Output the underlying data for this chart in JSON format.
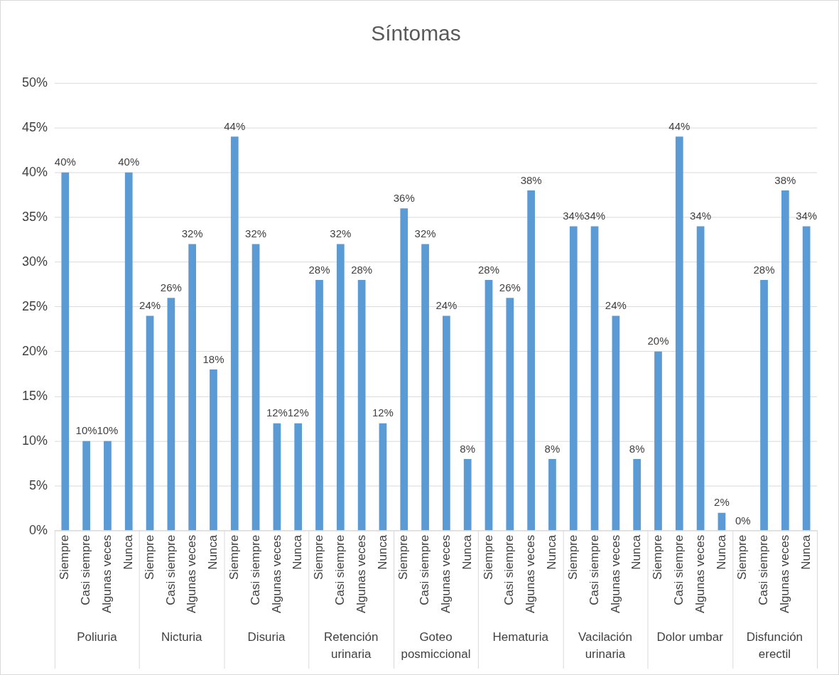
{
  "chart_data": {
    "type": "bar",
    "title": "Síntomas",
    "categories": [
      "Siempre",
      "Casi siempre",
      "Algunas veces",
      "Nunca",
      "Siempre",
      "Casi siempre",
      "Algunas veces",
      "Nunca",
      "Siempre",
      "Casi siempre",
      "Algunas veces",
      "Nunca",
      "Siempre",
      "Casi siempre",
      "Algunas veces",
      "Nunca",
      "Siempre",
      "Casi siempre",
      "Algunas veces",
      "Nunca",
      "Siempre",
      "Casi siempre",
      "Algunas veces",
      "Nunca",
      "Siempre",
      "Casi siempre",
      "Algunas veces",
      "Nunca",
      "Siempre",
      "Casi siempre",
      "Algunas veces",
      "Nunca",
      "Siempre",
      "Casi siempre",
      "Algunas veces",
      "Nunca"
    ],
    "values": [
      40,
      10,
      10,
      40,
      24,
      26,
      32,
      18,
      44,
      32,
      12,
      12,
      28,
      32,
      28,
      12,
      36,
      32,
      24,
      8,
      28,
      26,
      38,
      8,
      34,
      34,
      24,
      8,
      20,
      44,
      34,
      2,
      0,
      28,
      38,
      34
    ],
    "value_labels": [
      "40%",
      "10%",
      "10%",
      "40%",
      "24%",
      "26%",
      "32%",
      "18%",
      "44%",
      "32%",
      "12%",
      "12%",
      "28%",
      "32%",
      "28%",
      "12%",
      "36%",
      "32%",
      "24%",
      "8%",
      "28%",
      "26%",
      "38%",
      "8%",
      "34%",
      "34%",
      "24%",
      "8%",
      "20%",
      "44%",
      "34%",
      "2%",
      "0%",
      "28%",
      "38%",
      "34%"
    ],
    "color": "#5b9bd5",
    "ylim": [
      0,
      50
    ],
    "yticks": [
      {
        "value": 0,
        "label": "0%"
      },
      {
        "value": 5,
        "label": "5%"
      },
      {
        "value": 10,
        "label": "10%"
      },
      {
        "value": 15,
        "label": "15%"
      },
      {
        "value": 20,
        "label": "20%"
      },
      {
        "value": 25,
        "label": "25%"
      },
      {
        "value": 30,
        "label": "30%"
      },
      {
        "value": 35,
        "label": "35%"
      },
      {
        "value": 40,
        "label": "40%"
      },
      {
        "value": 45,
        "label": "45%"
      },
      {
        "value": 50,
        "label": "50%"
      }
    ],
    "grid": "y",
    "legend": false,
    "annotations": [
      "Poliuria",
      "Nicturia",
      "Disuria",
      "Retención urinaria",
      "Goteo posmiccional",
      "Hematuria",
      "Vacilación urinaria",
      "Dolor umbar",
      "Disfunción erectil"
    ]
  }
}
